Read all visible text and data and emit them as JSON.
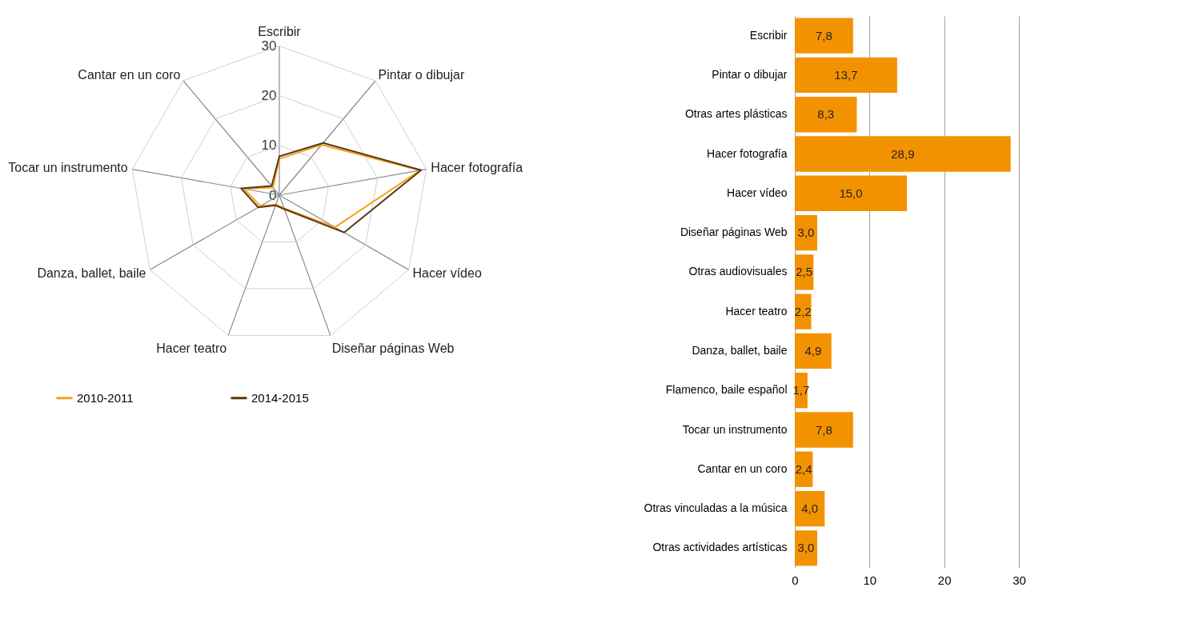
{
  "chart_data": [
    {
      "type": "radar",
      "categories": [
        "Escribir",
        "Pintar o dibujar",
        "Hacer fotografía",
        "Hacer vídeo",
        "Diseñar páginas Web",
        "Hacer teatro",
        "Danza, ballet, baile",
        "Tocar un instrumento",
        "Cantar en un coro"
      ],
      "series": [
        {
          "name": "2010-2011",
          "color": "#f4a21c",
          "values": [
            7.3,
            13.2,
            28.7,
            12.9,
            2.8,
            2.0,
            4.4,
            7.2,
            2.0
          ]
        },
        {
          "name": "2014-2015",
          "color": "#5a3812",
          "values": [
            7.8,
            13.7,
            28.9,
            15.0,
            3.0,
            2.2,
            4.9,
            7.8,
            2.4
          ]
        }
      ],
      "ylim": [
        0,
        30
      ],
      "yticks": [
        0,
        10,
        20,
        30
      ],
      "grid": true,
      "legend": "bottom"
    },
    {
      "type": "bar",
      "orientation": "horizontal",
      "categories": [
        "Escribir",
        "Pintar o dibujar",
        "Otras artes plásticas",
        "Hacer fotografía",
        "Hacer vídeo",
        "Diseñar páginas Web",
        "Otras audiovisuales",
        "Hacer teatro",
        "Danza, ballet, baile",
        "Flamenco, baile español",
        "Tocar un instrumento",
        "Cantar en un coro",
        "Otras vinculadas a la música",
        "Otras actividades artísticas"
      ],
      "values": [
        7.8,
        13.7,
        8.3,
        28.9,
        15.0,
        3.0,
        2.5,
        2.2,
        4.9,
        1.7,
        7.8,
        2.4,
        4.0,
        3.0
      ],
      "value_labels": [
        "7,8",
        "13,7",
        "8,3",
        "28,9",
        "15,0",
        "3,0",
        "2,5",
        "2,2",
        "4,9",
        "1,7",
        "7,8",
        "2,4",
        "4,0",
        "3,0"
      ],
      "color": "#f39200",
      "xlim": [
        0,
        30
      ],
      "xticks": [
        0,
        10,
        20,
        30
      ],
      "grid": "x"
    }
  ]
}
